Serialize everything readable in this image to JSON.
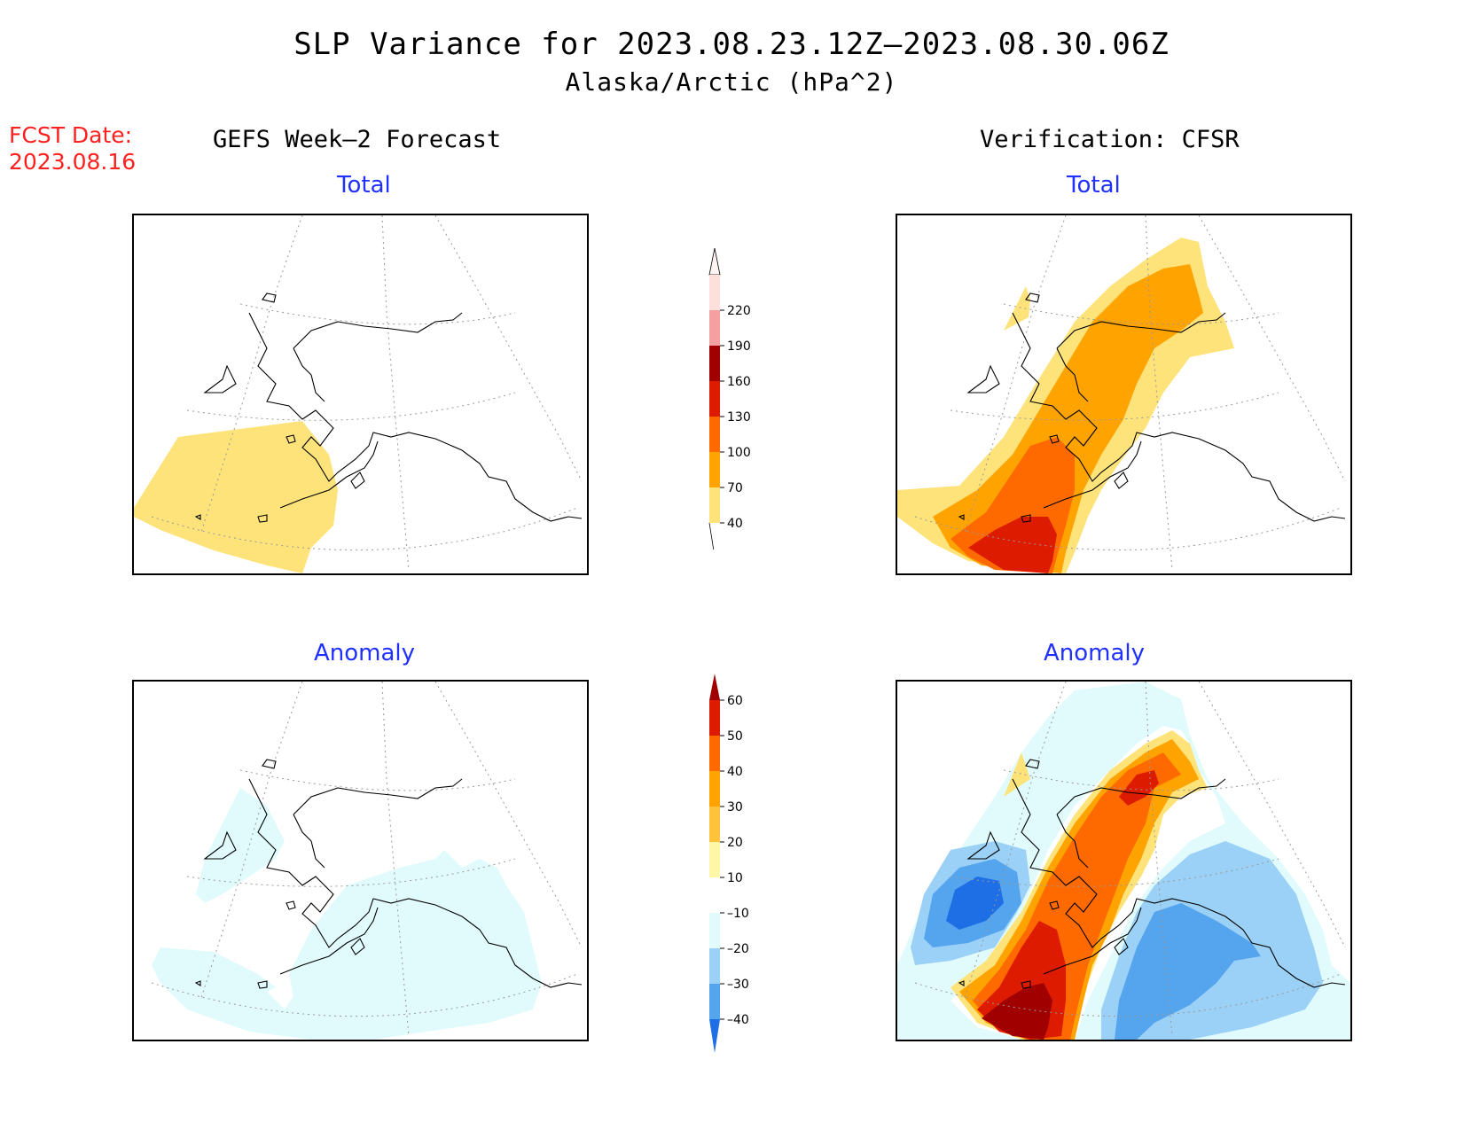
{
  "title": "SLP Variance for 2023.08.23.12Z–2023.08.30.06Z",
  "subtitle": "Alaska/Arctic (hPa^2)",
  "fcst_date_label": "FCST Date:",
  "fcst_date_value": "2023.08.16",
  "columns": {
    "left": "GEFS Week–2 Forecast",
    "right": "Verification: CFSR"
  },
  "panels": {
    "top_left": "Total",
    "top_right": "Total",
    "bottom_left": "Anomaly",
    "bottom_right": "Anomaly"
  },
  "total_colorbar": {
    "labels": [
      "220",
      "190",
      "160",
      "130",
      "100",
      "70",
      "40"
    ],
    "colors": [
      "#fde0dc",
      "#f4a0a0",
      "#a00000",
      "#dd1b00",
      "#ff6a00",
      "#ffa300",
      "#fde37a"
    ]
  },
  "anomaly_colorbar": {
    "labels": [
      "60",
      "50",
      "40",
      "30",
      "20",
      "10",
      "–10",
      "–20",
      "–30",
      "–40"
    ],
    "colors": [
      "#a00000",
      "#dd1b00",
      "#ff6a00",
      "#ffa300",
      "#ffc23b",
      "#fff6a8",
      "#ffffff",
      "#e1fbfd",
      "#9bd1f6",
      "#55a5ee",
      "#1e6ee6"
    ]
  },
  "map_colors": {
    "light_yellow": "#fde37a",
    "orange": "#ffa300",
    "dark_orange": "#ff6a00",
    "red": "#dd1b00",
    "dark_red": "#a00000",
    "pale_cyan": "#e1fbfd",
    "light_blue": "#9bd1f6",
    "mid_blue": "#55a5ee",
    "dark_blue": "#1e6ee6"
  }
}
